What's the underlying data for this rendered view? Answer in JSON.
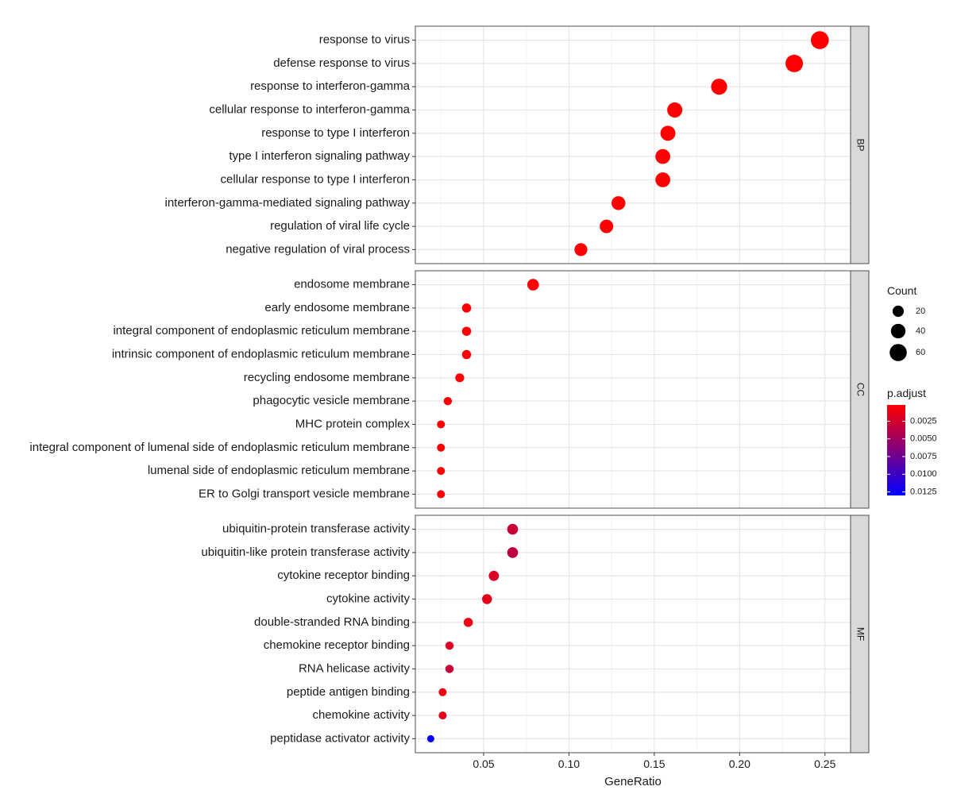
{
  "chart_data": {
    "type": "scatter",
    "xlabel": "GeneRatio",
    "xlim": [
      0.01,
      0.265
    ],
    "x_ticks": [
      0.05,
      0.1,
      0.15,
      0.2,
      0.25
    ],
    "x_tick_labels": [
      "0.05",
      "0.10",
      "0.15",
      "0.20",
      "0.25"
    ],
    "grid": true,
    "facets": [
      {
        "label": "BP",
        "terms": [
          {
            "term": "response to virus",
            "gene_ratio": 0.247,
            "count": 67,
            "p_adjust": 0.0002
          },
          {
            "term": "defense response to virus",
            "gene_ratio": 0.232,
            "count": 63,
            "p_adjust": 0.0002
          },
          {
            "term": "response to interferon-gamma",
            "gene_ratio": 0.188,
            "count": 51,
            "p_adjust": 0.0002
          },
          {
            "term": "cellular response to interferon-gamma",
            "gene_ratio": 0.162,
            "count": 44,
            "p_adjust": 0.0002
          },
          {
            "term": "response to type I interferon",
            "gene_ratio": 0.158,
            "count": 43,
            "p_adjust": 0.0002
          },
          {
            "term": "type I interferon signaling pathway",
            "gene_ratio": 0.155,
            "count": 42,
            "p_adjust": 0.0002
          },
          {
            "term": "cellular response to type I interferon",
            "gene_ratio": 0.155,
            "count": 42,
            "p_adjust": 0.0002
          },
          {
            "term": "interferon-gamma-mediated signaling pathway",
            "gene_ratio": 0.129,
            "count": 35,
            "p_adjust": 0.0002
          },
          {
            "term": "regulation of viral life cycle",
            "gene_ratio": 0.122,
            "count": 33,
            "p_adjust": 0.0002
          },
          {
            "term": "negative regulation of viral process",
            "gene_ratio": 0.107,
            "count": 29,
            "p_adjust": 0.0002
          }
        ]
      },
      {
        "label": "CC",
        "terms": [
          {
            "term": "endosome membrane",
            "gene_ratio": 0.079,
            "count": 22,
            "p_adjust": 0.0003
          },
          {
            "term": "early endosome membrane",
            "gene_ratio": 0.04,
            "count": 11,
            "p_adjust": 0.0003
          },
          {
            "term": "integral component of endoplasmic reticulum membrane",
            "gene_ratio": 0.04,
            "count": 11,
            "p_adjust": 0.0003
          },
          {
            "term": "intrinsic component of endoplasmic reticulum membrane",
            "gene_ratio": 0.04,
            "count": 11,
            "p_adjust": 0.0003
          },
          {
            "term": "recycling endosome membrane",
            "gene_ratio": 0.036,
            "count": 10,
            "p_adjust": 0.0003
          },
          {
            "term": "phagocytic vesicle membrane",
            "gene_ratio": 0.029,
            "count": 8,
            "p_adjust": 0.0003
          },
          {
            "term": "MHC protein complex",
            "gene_ratio": 0.025,
            "count": 7,
            "p_adjust": 0.0003
          },
          {
            "term": "integral component of lumenal side of endoplasmic reticulum membrane",
            "gene_ratio": 0.025,
            "count": 7,
            "p_adjust": 0.0003
          },
          {
            "term": "lumenal side of endoplasmic reticulum membrane",
            "gene_ratio": 0.025,
            "count": 7,
            "p_adjust": 0.0003
          },
          {
            "term": "ER to Golgi transport vesicle membrane",
            "gene_ratio": 0.025,
            "count": 7,
            "p_adjust": 0.0003
          }
        ]
      },
      {
        "label": "MF",
        "terms": [
          {
            "term": "ubiquitin-protein transferase activity",
            "gene_ratio": 0.067,
            "count": 18,
            "p_adjust": 0.003
          },
          {
            "term": "ubiquitin-like protein transferase activity",
            "gene_ratio": 0.067,
            "count": 18,
            "p_adjust": 0.0035
          },
          {
            "term": "cytokine receptor binding",
            "gene_ratio": 0.056,
            "count": 15,
            "p_adjust": 0.002
          },
          {
            "term": "cytokine activity",
            "gene_ratio": 0.052,
            "count": 14,
            "p_adjust": 0.0015
          },
          {
            "term": "double-stranded RNA binding",
            "gene_ratio": 0.041,
            "count": 11,
            "p_adjust": 0.001
          },
          {
            "term": "chemokine receptor binding",
            "gene_ratio": 0.03,
            "count": 8,
            "p_adjust": 0.002
          },
          {
            "term": "RNA helicase activity",
            "gene_ratio": 0.03,
            "count": 8,
            "p_adjust": 0.003
          },
          {
            "term": "peptide antigen binding",
            "gene_ratio": 0.026,
            "count": 7,
            "p_adjust": 0.001
          },
          {
            "term": "chemokine activity",
            "gene_ratio": 0.026,
            "count": 7,
            "p_adjust": 0.0015
          },
          {
            "term": "peptidase activator activity",
            "gene_ratio": 0.019,
            "count": 5,
            "p_adjust": 0.0128
          }
        ]
      }
    ],
    "legend": {
      "placement": "right",
      "size_title": "Count",
      "size_breaks": [
        20,
        40,
        60
      ],
      "size_labels": [
        "20",
        "40",
        "60"
      ],
      "color_title": "p.adjust",
      "color_breaks": [
        0.0025,
        0.005,
        0.0075,
        0.01,
        0.0125
      ],
      "color_labels": [
        "0.0025",
        "0.0050",
        "0.0075",
        "0.0100",
        "0.0125"
      ],
      "color_range": [
        0.0002,
        0.013
      ],
      "color_low": "#ff0000",
      "color_high": "#0000ff"
    }
  }
}
